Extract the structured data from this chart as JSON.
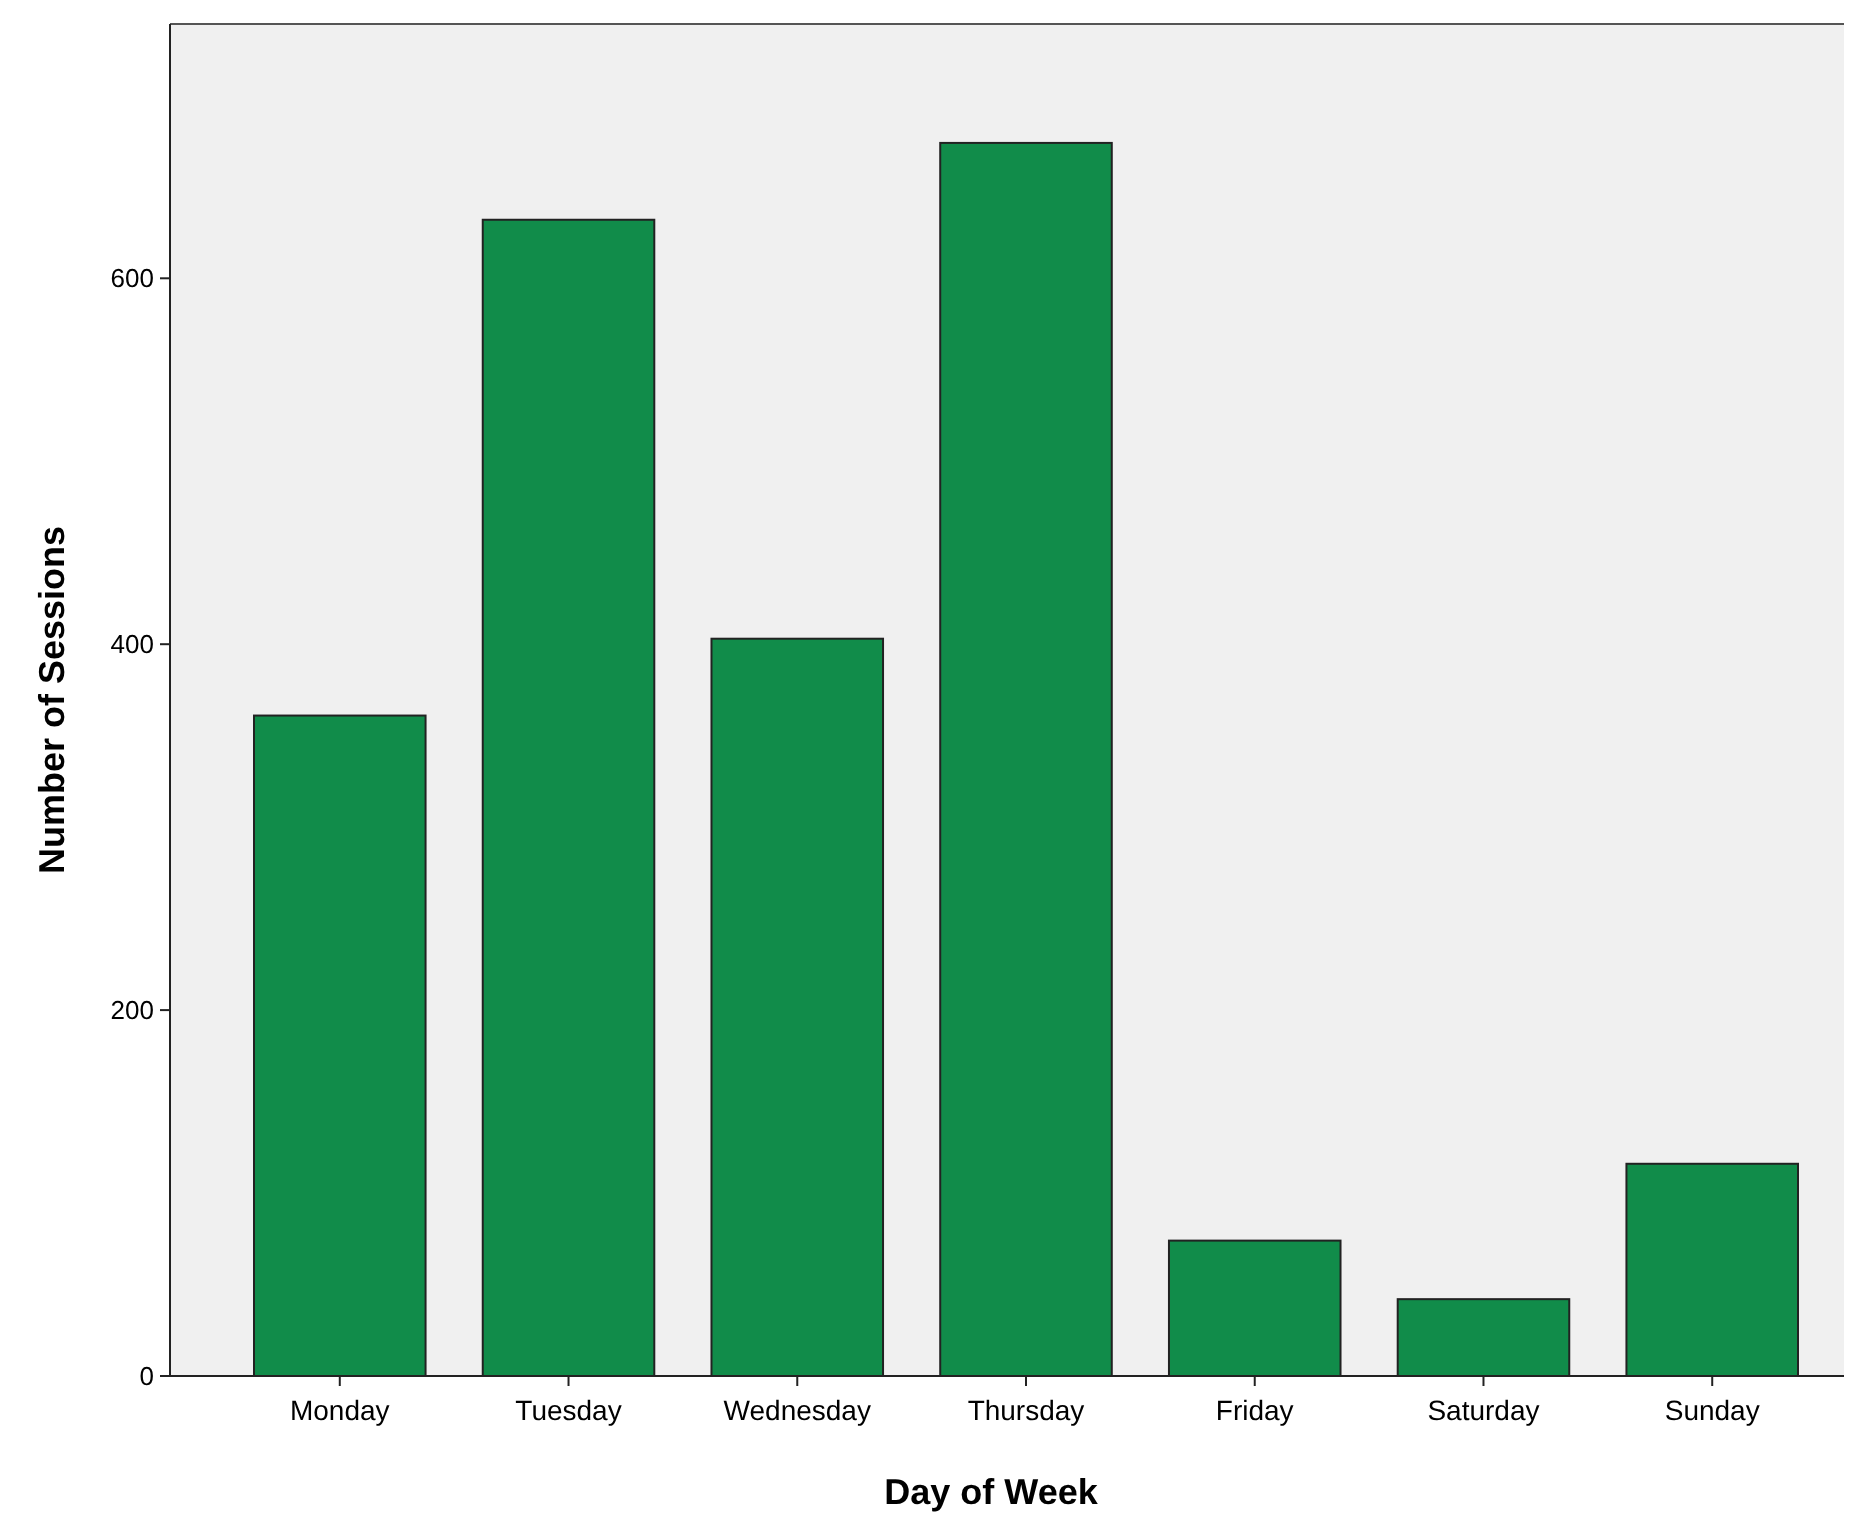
{
  "chart_data": {
    "type": "bar",
    "xlabel": "Day of Week",
    "ylabel": "Number of Sessions",
    "categories": [
      "Monday",
      "Tuesday",
      "Wednesday",
      "Thursday",
      "Friday",
      "Saturday",
      "Sunday"
    ],
    "values": [
      361,
      632,
      403,
      674,
      74,
      42,
      116
    ],
    "color": "#118c4a",
    "ylim": [
      0,
      739
    ],
    "yticks": [
      0,
      200,
      400,
      600
    ],
    "grid": false
  }
}
